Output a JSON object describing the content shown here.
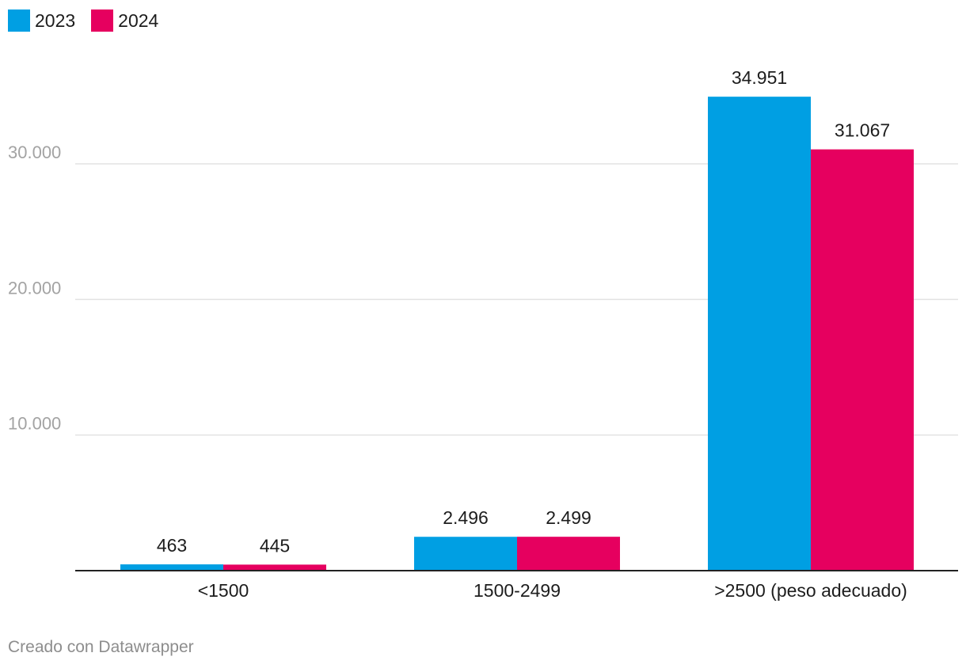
{
  "chart_data": {
    "type": "bar",
    "categories": [
      "<1500",
      "1500-2499",
      ">2500 (peso adecuado)"
    ],
    "series": [
      {
        "name": "2023",
        "color": "#009FE3",
        "values": [
          463,
          2496,
          34951
        ],
        "labels": [
          "463",
          "2.496",
          "34.951"
        ]
      },
      {
        "name": "2024",
        "color": "#E6005F",
        "values": [
          445,
          2499,
          31067
        ],
        "labels": [
          "445",
          "2.499",
          "31.067"
        ]
      }
    ],
    "yticks": [
      10000,
      20000,
      30000
    ],
    "ytick_labels": [
      "10.000",
      "20.000",
      "30.000"
    ],
    "ylim": [
      0,
      35000
    ],
    "grid": true,
    "legend": "top-left"
  },
  "credit": "Creado con Datawrapper"
}
